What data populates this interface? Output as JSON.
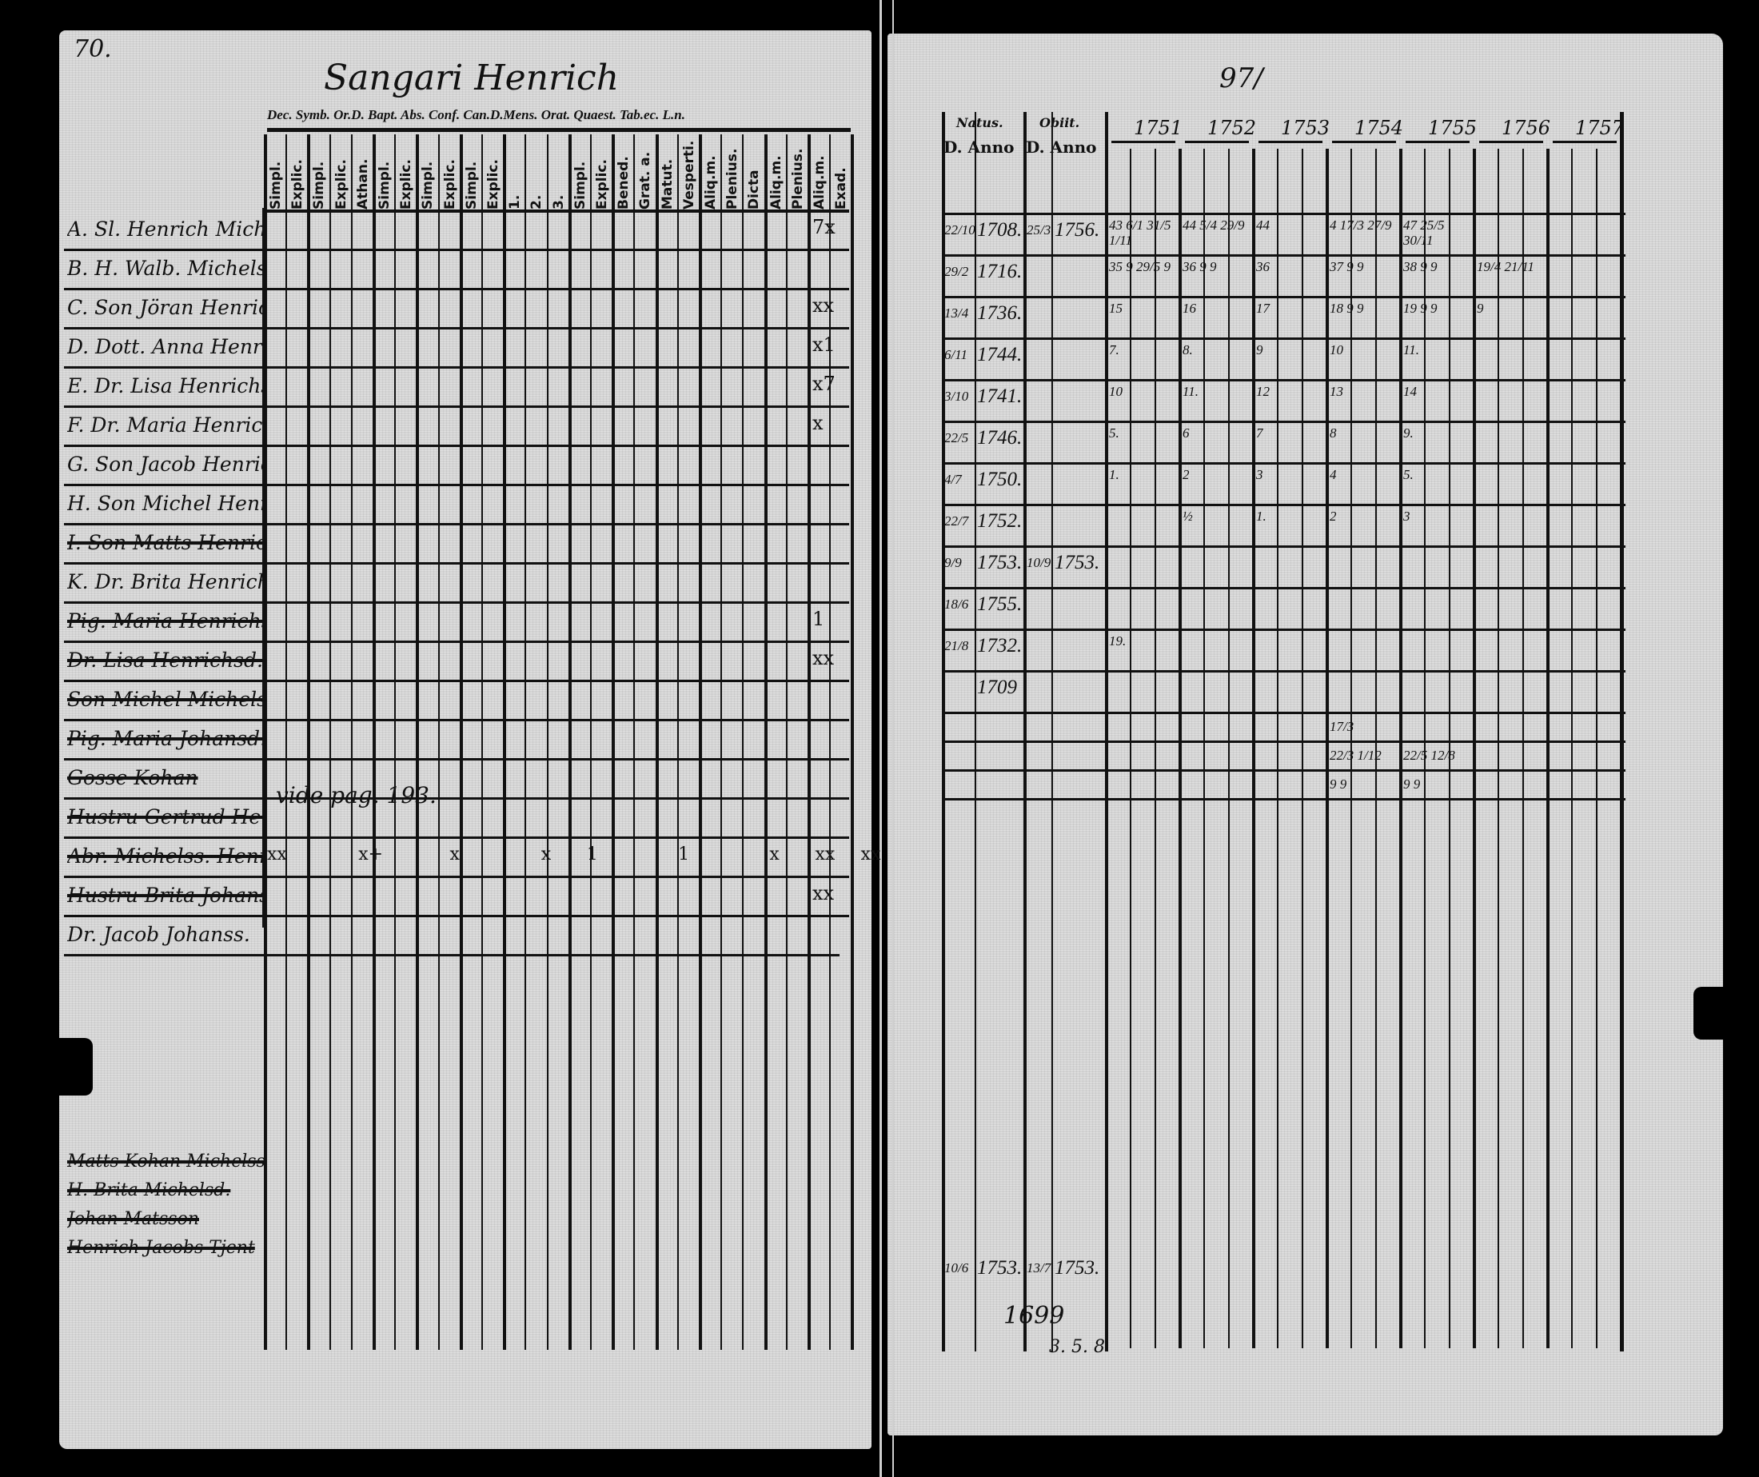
{
  "left_page": {
    "page_number": "70.",
    "household_title": "Sangari Henrich",
    "group_headers": "Dec. Symb. Or.D. Bapt. Abs. Conf. Can.D.Mens. Orat. Quaest. Tab.ec. L.n.",
    "column_headers": [
      "Simpl.",
      "Explic.",
      "Simpl.",
      "Explic.",
      "Athan.",
      "Simpl.",
      "Explic.",
      "Simpl.",
      "Explic.",
      "Simpl.",
      "Explic.",
      "1.",
      "2.",
      "3.",
      "Simpl.",
      "Explic.",
      "Bened.",
      "Grat. a.",
      "Matut.",
      "Vesperti.",
      "Aliq.m.",
      "Plenius.",
      "Dicta S.S.",
      "Aliq.m.",
      "Plenius.",
      "Aliq.m.",
      "Exad."
    ],
    "rows": [
      {
        "name": "A. Sl. Henrich Michelss.",
        "struck": false,
        "mark": "7x"
      },
      {
        "name": "B. H. Walb. Michels Dr.",
        "struck": false,
        "mark": ""
      },
      {
        "name": "C. Son Jöran Henrichss.",
        "struck": false,
        "mark": "xx"
      },
      {
        "name": "D. Dott. Anna Henrichsd.",
        "struck": false,
        "mark": "x1"
      },
      {
        "name": "E. Dr. Lisa Henrichsd.",
        "struck": false,
        "mark": "x7"
      },
      {
        "name": "F. Dr. Maria Henrichsd.",
        "struck": false,
        "mark": "x"
      },
      {
        "name": "G. Son Jacob Henrichss.",
        "struck": false,
        "mark": ""
      },
      {
        "name": "H. Son Michel Henrichss.",
        "struck": false,
        "mark": ""
      },
      {
        "name": "I. Son Matts Henrichss.",
        "struck": true,
        "mark": ""
      },
      {
        "name": "K. Dr. Brita Henrichsdr.",
        "struck": false,
        "mark": ""
      },
      {
        "name": "Pig. Maria Henrichsd.",
        "struck": true,
        "mark": "1"
      },
      {
        "name": "Dr. Lisa Henrichsd.",
        "struck": true,
        "mark": "xx"
      },
      {
        "name": "Son Michel Michelss.",
        "struck": true,
        "mark": ""
      },
      {
        "name": "Pig. Maria Johansd.",
        "struck": true,
        "mark": ""
      },
      {
        "name": "Gosse Kohan",
        "struck": true,
        "mark": ""
      },
      {
        "name": "Hustru Gertrud Henrichsd.",
        "struck": true,
        "mark": ""
      },
      {
        "name": "Abr. Michelss. Henrichss.",
        "struck": true,
        "mark": ""
      },
      {
        "name": "Hustru Brita Johansd.",
        "struck": true,
        "mark": "xx"
      },
      {
        "name": "Dr. Jacob Johanss.",
        "struck": false,
        "mark": ""
      }
    ],
    "row17_marks": [
      "xx",
      "x+",
      "x",
      "x",
      "1",
      "1",
      "x",
      "xx",
      "xx"
    ],
    "cross_reference": "vide pag. 193.",
    "bottom_entries": [
      "Matts Kohan Michelss.",
      "H. Brita Michelsd.",
      "Johan Matsson",
      "Henrich Jacobs Tjent"
    ]
  },
  "right_page": {
    "folio": "97/",
    "natus_label": "Natus.",
    "natus_sub": "D. Anno",
    "obiit_label": "Obiit.",
    "obiit_sub": "D. Anno",
    "years": [
      "1751",
      "1752",
      "1753",
      "1754",
      "1755",
      "1756",
      "1757"
    ],
    "rows": [
      {
        "natus_day": "22/10",
        "natus_year": "1708.",
        "obiit_day": "25/3",
        "obiit_year": "1756.",
        "years": [
          "43 6/1 31/5 1/11",
          "44 5/4 29/9",
          "44",
          "4 17/3 27/9",
          "47 25/5 30/11",
          "",
          ""
        ]
      },
      {
        "natus_day": "29/2",
        "natus_year": "1716.",
        "obiit_day": "",
        "obiit_year": "",
        "years": [
          "35 9 29/5 9",
          "36 9 9",
          "36",
          "37 9 9",
          "38 9 9",
          "19/4 21/11",
          ""
        ]
      },
      {
        "natus_day": "13/4",
        "natus_year": "1736.",
        "obiit_day": "",
        "obiit_year": "",
        "years": [
          "15",
          "16",
          "17",
          "18 9 9",
          "19 9 9",
          "9",
          ""
        ]
      },
      {
        "natus_day": "6/11",
        "natus_year": "1744.",
        "obiit_day": "",
        "obiit_year": "",
        "years": [
          "7.",
          "8.",
          "9",
          "10",
          "11.",
          "",
          ""
        ]
      },
      {
        "natus_day": "3/10",
        "natus_year": "1741.",
        "obiit_day": "",
        "obiit_year": "",
        "years": [
          "10",
          "11.",
          "12",
          "13",
          "14",
          "",
          ""
        ]
      },
      {
        "natus_day": "22/5",
        "natus_year": "1746.",
        "obiit_day": "",
        "obiit_year": "",
        "years": [
          "5.",
          "6",
          "7",
          "8",
          "9.",
          "",
          ""
        ]
      },
      {
        "natus_day": "4/7",
        "natus_year": "1750.",
        "obiit_day": "",
        "obiit_year": "",
        "years": [
          "1.",
          "2",
          "3",
          "4",
          "5.",
          "",
          ""
        ]
      },
      {
        "natus_day": "22/7",
        "natus_year": "1752.",
        "obiit_day": "",
        "obiit_year": "",
        "years": [
          "",
          "½",
          "1.",
          "2",
          "3",
          "",
          ""
        ]
      },
      {
        "natus_day": "9/9",
        "natus_year": "1753.",
        "obiit_day": "10/9",
        "obiit_year": "1753.",
        "years": [
          "",
          "",
          "",
          "",
          "",
          "",
          ""
        ]
      },
      {
        "natus_day": "18/6",
        "natus_year": "1755.",
        "obiit_day": "",
        "obiit_year": "",
        "years": [
          "",
          "",
          "",
          "",
          "",
          "",
          ""
        ]
      },
      {
        "natus_day": "21/8",
        "natus_year": "1732.",
        "obiit_day": "",
        "obiit_year": "",
        "years": [
          "19.",
          "",
          "",
          "",
          "",
          "",
          ""
        ]
      },
      {
        "natus_day": "",
        "natus_year": "1709",
        "obiit_day": "",
        "obiit_year": "",
        "years": [
          "",
          "",
          "",
          "",
          "",
          "",
          ""
        ]
      }
    ],
    "extra_rows": [
      [
        "",
        "",
        "",
        "17/3",
        "",
        "",
        ""
      ],
      [
        "",
        "",
        "",
        "22/3 1/12",
        "22/5 12/8",
        "",
        ""
      ],
      [
        "",
        "",
        "",
        "9 9",
        "9 9",
        "",
        ""
      ]
    ],
    "bottom_row": {
      "natus_day": "10/6",
      "natus_year": "1753.",
      "obiit_day": "13/7",
      "obiit_year": "1753."
    },
    "bottom_extra_year": "1699",
    "bottom_numbers": "3.  5.  8"
  },
  "colors": {
    "paper": "#d4d4d4",
    "ink": "#111111",
    "background": "#000000"
  }
}
